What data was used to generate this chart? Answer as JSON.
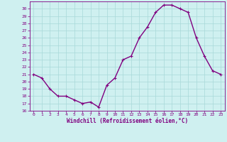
{
  "x": [
    0,
    1,
    2,
    3,
    4,
    5,
    6,
    7,
    8,
    9,
    10,
    11,
    12,
    13,
    14,
    15,
    16,
    17,
    18,
    19,
    20,
    21,
    22,
    23
  ],
  "y": [
    21,
    20.5,
    19,
    18,
    18,
    17.5,
    17,
    17.2,
    16.5,
    19.5,
    20.5,
    23,
    23.5,
    26,
    27.5,
    29.5,
    30.5,
    30.5,
    30,
    29.5,
    26,
    23.5,
    21.5,
    21
  ],
  "line_color": "#800080",
  "marker": "+",
  "marker_color": "#800080",
  "marker_size": 3,
  "marker_lw": 0.8,
  "bg_color": "#cff0f0",
  "grid_color": "#a8d8d8",
  "xlabel": "Windchill (Refroidissement éolien,°C)",
  "xlabel_color": "#800080",
  "tick_color": "#800080",
  "ylim": [
    16,
    31
  ],
  "xlim": [
    -0.5,
    23.5
  ],
  "yticks": [
    16,
    17,
    18,
    19,
    20,
    21,
    22,
    23,
    24,
    25,
    26,
    27,
    28,
    29,
    30
  ],
  "xticks": [
    0,
    1,
    2,
    3,
    4,
    5,
    6,
    7,
    8,
    9,
    10,
    11,
    12,
    13,
    14,
    15,
    16,
    17,
    18,
    19,
    20,
    21,
    22,
    23
  ],
  "spine_color": "#800080",
  "line_width": 1.0,
  "font_size_ticks": 4.5,
  "font_size_xlabel": 5.5
}
